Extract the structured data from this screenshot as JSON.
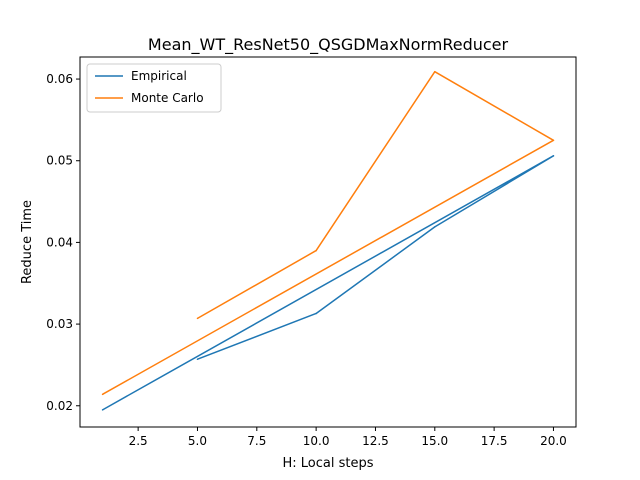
{
  "chart_data": {
    "type": "line",
    "title": "Mean_WT_ResNet50_QSGDMaxNormReducer",
    "xlabel": "H: Local steps",
    "ylabel": "Reduce Time",
    "xlim": [
      0.05,
      20.95
    ],
    "ylim": [
      0.0174,
      0.0627
    ],
    "xticks": [
      2.5,
      5.0,
      7.5,
      10.0,
      12.5,
      15.0,
      17.5,
      20.0
    ],
    "xtick_labels": [
      "2.5",
      "5.0",
      "7.5",
      "10.0",
      "12.5",
      "15.0",
      "17.5",
      "20.0"
    ],
    "yticks": [
      0.02,
      0.03,
      0.04,
      0.05,
      0.06
    ],
    "ytick_labels": [
      "0.02",
      "0.03",
      "0.04",
      "0.05",
      "0.06"
    ],
    "grid": false,
    "legend_position": "top-left",
    "series": [
      {
        "name": "Empirical",
        "color": "#1f77b4",
        "x": [
          1,
          20,
          15,
          10,
          5
        ],
        "y": [
          0.0195,
          0.0506,
          0.0419,
          0.0313,
          0.0257
        ]
      },
      {
        "name": "Monte Carlo",
        "color": "#ff7f0e",
        "x": [
          1,
          20,
          15,
          10,
          5
        ],
        "y": [
          0.0214,
          0.0525,
          0.0609,
          0.039,
          0.0307
        ]
      }
    ]
  }
}
